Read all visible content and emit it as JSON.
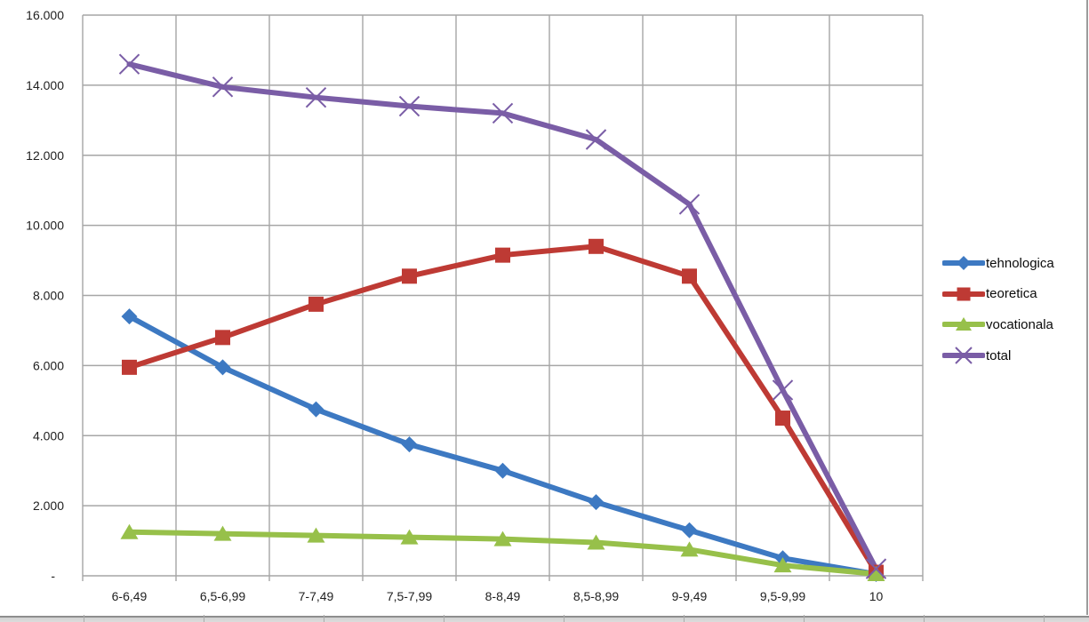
{
  "chart_data": {
    "type": "line",
    "title": "",
    "xlabel": "",
    "ylabel": "",
    "categories": [
      "6-6,49",
      "6,5-6,99",
      "7-7,49",
      "7,5-7,99",
      "8-8,49",
      "8,5-8,99",
      "9-9,49",
      "9,5-9,99",
      "10"
    ],
    "series": [
      {
        "name": "tehnologica",
        "marker": "diamond",
        "color": "#3d79c2",
        "values": [
          7400,
          5950,
          4750,
          3750,
          3000,
          2100,
          1300,
          500,
          50
        ]
      },
      {
        "name": "teoretica",
        "marker": "square",
        "color": "#be3a34",
        "values": [
          5950,
          6800,
          7750,
          8550,
          9150,
          9400,
          8550,
          4500,
          100
        ]
      },
      {
        "name": "vocationala",
        "marker": "triangle",
        "color": "#97c04a",
        "values": [
          1250,
          1200,
          1150,
          1100,
          1050,
          950,
          750,
          300,
          50
        ]
      },
      {
        "name": "total",
        "marker": "x",
        "color": "#7a5da6",
        "values": [
          14600,
          13950,
          13650,
          13400,
          13200,
          12450,
          10600,
          5300,
          200
        ]
      }
    ],
    "ylim": [
      0,
      16000
    ],
    "ytick_step": 2000,
    "ytick_labels": [
      "-",
      "2.000",
      "4.000",
      "6.000",
      "8.000",
      "10.000",
      "12.000",
      "14.000",
      "16.000"
    ],
    "grid": true,
    "legend_position": "right-middle"
  },
  "colors": {
    "gridline": "#a6a6a6",
    "axis_text": "#1f1f1f",
    "legend_text": "#0a0a0a",
    "frame_edge": "#9b9b9b",
    "worksheet_strip": "#d2d2d2"
  }
}
